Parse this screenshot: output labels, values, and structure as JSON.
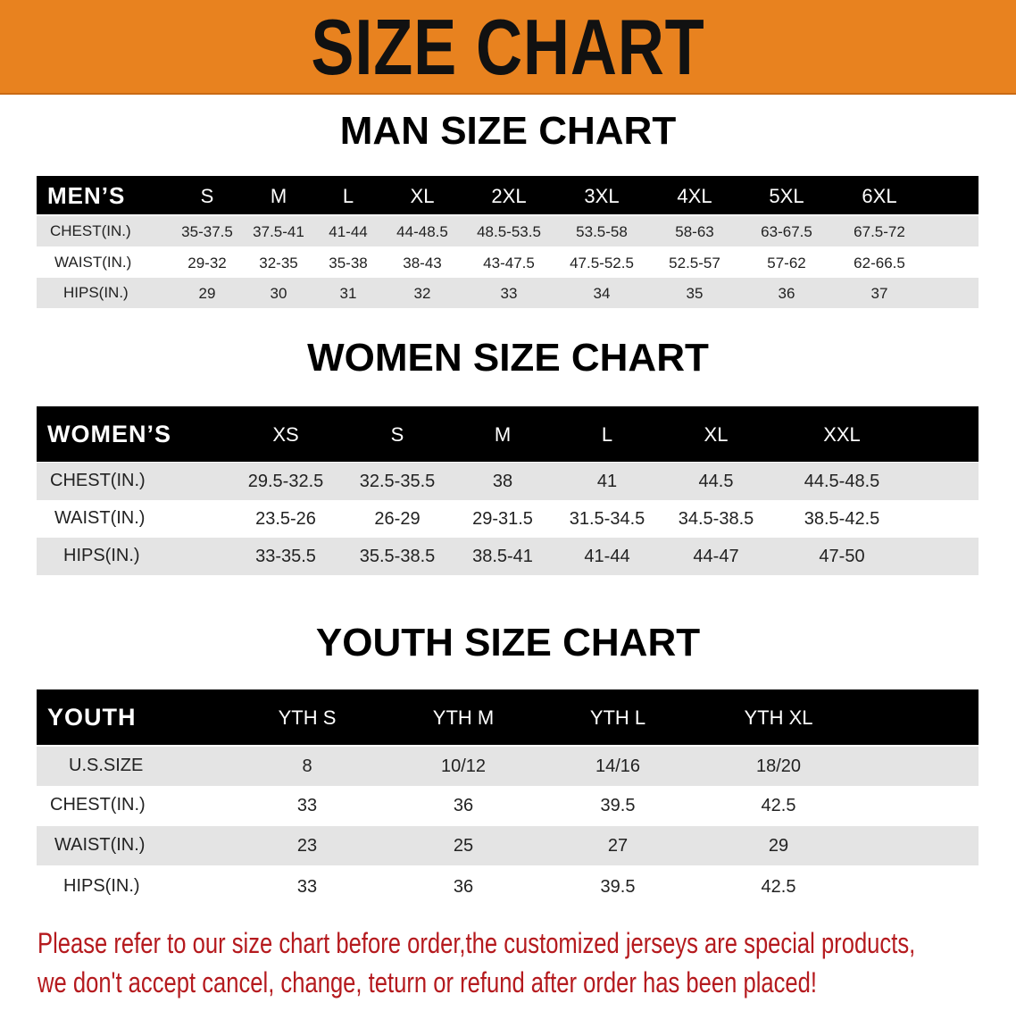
{
  "banner_title": "SIZE CHART",
  "colors": {
    "banner": "#e8821f",
    "header_row": "#000000",
    "shaded_row": "#e4e4e4",
    "note_text": "#b51a1e"
  },
  "men": {
    "title": "MAN SIZE CHART",
    "header_label": "MEN’S",
    "sizes": [
      "S",
      "M",
      "L",
      "XL",
      "2XL",
      "3XL",
      "4XL",
      "5XL",
      "6XL"
    ],
    "rows": [
      {
        "label": "CHEST(IN.)",
        "values": [
          "35-37.5",
          "37.5-41",
          "41-44",
          "44-48.5",
          "48.5-53.5",
          "53.5-58",
          "58-63",
          "63-67.5",
          "67.5-72"
        ]
      },
      {
        "label": "WAIST(IN.)",
        "values": [
          "29-32",
          "32-35",
          "35-38",
          "38-43",
          "43-47.5",
          "47.5-52.5",
          "52.5-57",
          "57-62",
          "62-66.5"
        ]
      },
      {
        "label": "HIPS(IN.)",
        "values": [
          "29",
          "30",
          "31",
          "32",
          "33",
          "34",
          "35",
          "36",
          "37"
        ]
      }
    ]
  },
  "women": {
    "title": "WOMEN SIZE CHART",
    "header_label": "WOMEN’S",
    "sizes": [
      "XS",
      "S",
      "M",
      "L",
      "XL",
      "XXL"
    ],
    "rows": [
      {
        "label": "CHEST(IN.)",
        "values": [
          "29.5-32.5",
          "32.5-35.5",
          "38",
          "41",
          "44.5",
          "44.5-48.5"
        ]
      },
      {
        "label": "WAIST(IN.)",
        "values": [
          "23.5-26",
          "26-29",
          "29-31.5",
          "31.5-34.5",
          "34.5-38.5",
          "38.5-42.5"
        ]
      },
      {
        "label": "HIPS(IN.)",
        "values": [
          "33-35.5",
          "35.5-38.5",
          "38.5-41",
          "41-44",
          "44-47",
          "47-50"
        ]
      }
    ]
  },
  "youth": {
    "title": "YOUTH SIZE CHART",
    "header_label": "YOUTH",
    "sizes": [
      "YTH S",
      "YTH M",
      "YTH L",
      "YTH XL"
    ],
    "rows": [
      {
        "label": "U.S.SIZE",
        "values": [
          "8",
          "10/12",
          "14/16",
          "18/20"
        ]
      },
      {
        "label": "CHEST(IN.)",
        "values": [
          "33",
          "36",
          "39.5",
          "42.5"
        ]
      },
      {
        "label": "WAIST(IN.)",
        "values": [
          "23",
          "25",
          "27",
          "29"
        ]
      },
      {
        "label": "HIPS(IN.)",
        "values": [
          "33",
          "36",
          "39.5",
          "42.5"
        ]
      }
    ]
  },
  "note": {
    "line1": "Please refer to our size chart before order,the customized jerseys are special products,",
    "line2": "we don't accept cancel, change, teturn or refund after order has been placed!"
  }
}
